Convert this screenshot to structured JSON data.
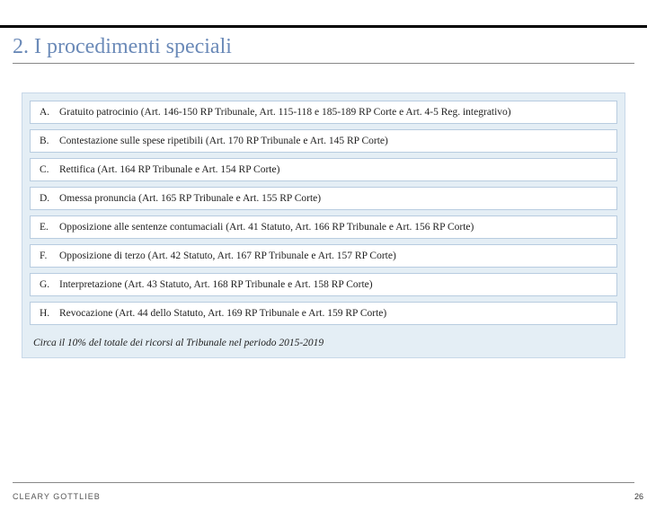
{
  "title": "2. I procedimenti speciali",
  "items": [
    {
      "label": "A.",
      "text": "Gratuito patrocinio (Art. 146-150 RP Tribunale, Art. 115-118 e 185-189 RP Corte e Art. 4-5 Reg. integrativo)"
    },
    {
      "label": "B.",
      "text": "Contestazione sulle spese ripetibili (Art. 170 RP Tribunale e Art. 145 RP Corte)"
    },
    {
      "label": "C.",
      "text": "Rettifica (Art. 164 RP Tribunale e Art. 154 RP Corte)"
    },
    {
      "label": "D.",
      "text": "Omessa pronuncia (Art. 165 RP Tribunale e Art. 155 RP Corte)"
    },
    {
      "label": "E.",
      "text": "Opposizione alle sentenze contumaciali (Art. 41 Statuto, Art. 166 RP Tribunale e Art. 156 RP Corte)"
    },
    {
      "label": "F.",
      "text": "Opposizione di terzo (Art. 42 Statuto, Art. 167 RP Tribunale e Art. 157 RP Corte)"
    },
    {
      "label": "G.",
      "text": "Interpretazione (Art. 43 Statuto, Art. 168 RP Tribunale e Art. 158 RP Corte)"
    },
    {
      "label": "H.",
      "text": "Revocazione (Art. 44 dello Statuto, Art. 169 RP Tribunale e Art. 159 RP Corte)"
    }
  ],
  "footnote": "Circa il 10% del totale dei ricorsi al Tribunale nel periodo 2015-2019",
  "logo": "CLEARY GOTTLIEB",
  "pageNumber": "26"
}
